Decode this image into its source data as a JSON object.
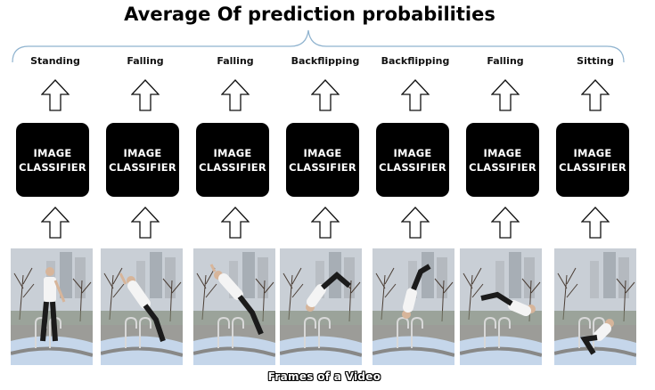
{
  "title": "Average Of prediction probabilities",
  "caption": "Frames of a Video",
  "columns": [
    {
      "label": "Standing",
      "classifier_line1": "IMAGE",
      "classifier_line2": "CLASSIFIER",
      "pose": "standing"
    },
    {
      "label": "Falling",
      "classifier_line1": "IMAGE",
      "classifier_line2": "CLASSIFIER",
      "pose": "lean"
    },
    {
      "label": "Falling",
      "classifier_line1": "IMAGE",
      "classifier_line2": "CLASSIFIER",
      "pose": "tilt"
    },
    {
      "label": "Backflipping",
      "classifier_line1": "IMAGE",
      "classifier_line2": "CLASSIFIER",
      "pose": "inverted"
    },
    {
      "label": "Backflipping",
      "classifier_line1": "IMAGE",
      "classifier_line2": "CLASSIFIER",
      "pose": "handstand"
    },
    {
      "label": "Falling",
      "classifier_line1": "IMAGE",
      "classifier_line2": "CLASSIFIER",
      "pose": "flat"
    },
    {
      "label": "Sitting",
      "classifier_line1": "IMAGE",
      "classifier_line2": "CLASSIFIER",
      "pose": "crouch"
    }
  ],
  "colors": {
    "brace": "#8fb3cf",
    "classifier_bg": "#000000",
    "classifier_text": "#ffffff",
    "sky": "#c9cfd6",
    "water": "#c5d6ea",
    "concrete": "#9c9c98"
  }
}
